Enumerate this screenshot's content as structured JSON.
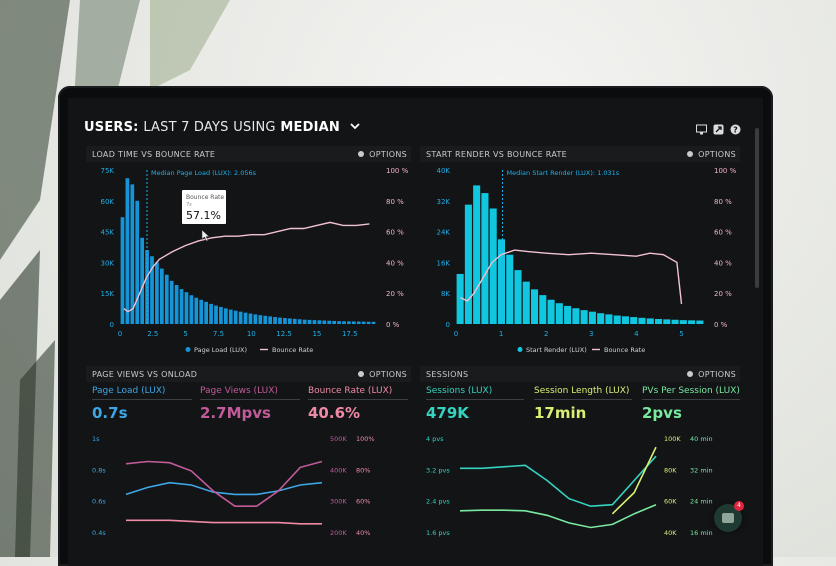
{
  "header": {
    "title_prefix": "USERS:",
    "title_range": "LAST 7 DAYS",
    "title_using": "USING",
    "title_metric": "MEDIAN"
  },
  "options_label": "OPTIONS",
  "panel1": {
    "title": "LOAD TIME VS BOUNCE RATE",
    "median_label": "Median Page Load (LUX): 2.056s",
    "tooltip": {
      "label": "Bounce Rate",
      "sub": "7s",
      "value": "57.1%"
    },
    "legend": [
      "Page Load (LUX)",
      "Bounce Rate"
    ]
  },
  "panel2": {
    "title": "START RENDER VS BOUNCE RATE",
    "median_label": "Median Start Render (LUX): 1.031s",
    "legend": [
      "Start Render (LUX)",
      "Bounce Rate"
    ]
  },
  "panel3": {
    "title": "PAGE VIEWS VS ONLOAD",
    "metrics": [
      {
        "label": "Page Load (LUX)",
        "value": "0.7s",
        "color": "#3fa6e6"
      },
      {
        "label": "Page Views (LUX)",
        "value": "2.7Mpvs",
        "color": "#c25b9a"
      },
      {
        "label": "Bounce Rate (LUX)",
        "value": "40.6%",
        "color": "#ef8aa6"
      }
    ],
    "y_left": [
      "1s",
      "0.8s",
      "0.6s",
      "0.4s"
    ],
    "y_right_a": [
      "500K",
      "400K",
      "300K",
      "200K"
    ],
    "y_right_b": [
      "100%",
      "80%",
      "60%",
      "40%"
    ]
  },
  "panel4": {
    "title": "SESSIONS",
    "metrics": [
      {
        "label": "Sessions (LUX)",
        "value": "479K",
        "color": "#35d3c0"
      },
      {
        "label": "Session Length (LUX)",
        "value": "17min",
        "color": "#d9ef74"
      },
      {
        "label": "PVs Per Session (LUX)",
        "value": "2pvs",
        "color": "#7be8a0"
      }
    ],
    "y_left": [
      "4 pvs",
      "3.2 pvs",
      "2.4 pvs",
      "1.6 pvs"
    ],
    "y_right_a": [
      "100K",
      "80K",
      "60K",
      "40K"
    ],
    "y_right_b": [
      "40 min",
      "32 min",
      "24 min",
      "16 min"
    ]
  },
  "chat_badge": "4",
  "colors": {
    "bar": "#1594d6",
    "bar_cyan": "#11c7e0",
    "line_pink": "#f2c1d2",
    "accent_blue": "#3fa6e6"
  },
  "chart_data": [
    {
      "type": "bar",
      "title": "LOAD TIME VS BOUNCE RATE",
      "x_ticks": [
        "0",
        "2.5",
        "5",
        "7.5",
        "10",
        "12.5",
        "15",
        "17.5"
      ],
      "y_left_ticks": [
        "75K",
        "60K",
        "45K",
        "30K",
        "15K",
        "0"
      ],
      "y_right_ticks": [
        "100 %",
        "80 %",
        "60 %",
        "40 %",
        "20 %",
        "0 %"
      ],
      "ylim": [
        0,
        75000
      ],
      "series": [
        {
          "name": "Page Load (LUX)",
          "values": [
            52000,
            71000,
            68000,
            60000,
            42000,
            36000,
            33000,
            30000,
            27000,
            24000,
            21000,
            19000,
            17000,
            15500,
            14000,
            12800,
            11800,
            10800,
            9800,
            9000,
            8300,
            7600,
            7000,
            6500,
            6000,
            5500,
            5100,
            4700,
            4300,
            4000,
            3700,
            3400,
            3100,
            2900,
            2700,
            2500,
            2300,
            2100,
            2000,
            1900,
            1800,
            1700,
            1600,
            1500,
            1400,
            1350,
            1300,
            1250,
            1200,
            1150,
            1100,
            1050
          ]
        },
        {
          "name": "Bounce Rate",
          "x": [
            0.3,
            0.6,
            1,
            1.5,
            2,
            2.5,
            3,
            4,
            5,
            6,
            7,
            8,
            9,
            10,
            11,
            12,
            13,
            14,
            15,
            16,
            17,
            18,
            19
          ],
          "values": [
            10,
            8,
            10,
            20,
            30,
            37,
            42,
            47,
            51,
            54,
            56,
            57,
            57,
            58,
            58,
            60,
            62,
            62,
            64,
            66,
            64,
            64,
            65
          ]
        }
      ],
      "median": 2.056,
      "legend": "bottom"
    },
    {
      "type": "bar",
      "title": "START RENDER VS BOUNCE RATE",
      "x_ticks": [
        "0",
        "1",
        "2",
        "3",
        "4",
        "5"
      ],
      "y_left_ticks": [
        "40K",
        "32K",
        "24K",
        "16K",
        "8K",
        "0"
      ],
      "y_right_ticks": [
        "100 %",
        "80 %",
        "60 %",
        "40 %",
        "20 %",
        "0 %"
      ],
      "ylim": [
        0,
        40000
      ],
      "series": [
        {
          "name": "Start Render (LUX)",
          "values": [
            13000,
            31000,
            36000,
            34000,
            30000,
            22000,
            18000,
            14000,
            11000,
            9000,
            7500,
            6300,
            5400,
            4700,
            4100,
            3600,
            3200,
            2800,
            2500,
            2200,
            2000,
            1800,
            1600,
            1450,
            1300,
            1200,
            1100,
            1000,
            950,
            900
          ]
        },
        {
          "name": "Bounce Rate",
          "x": [
            0.1,
            0.25,
            0.4,
            0.6,
            0.8,
            1,
            1.3,
            1.6,
            2,
            2.5,
            3,
            3.5,
            4,
            4.3,
            4.6,
            4.9,
            5
          ],
          "values": [
            17,
            15,
            20,
            30,
            40,
            45,
            48,
            47,
            46,
            45,
            46,
            45,
            44,
            46,
            45,
            40,
            13
          ]
        }
      ],
      "median": 1.031,
      "legend": "bottom"
    },
    {
      "type": "line",
      "title": "PAGE VIEWS VS ONLOAD",
      "series": [
        {
          "name": "Page Load (LUX)",
          "values": [
            0.52,
            0.58,
            0.62,
            0.6,
            0.54,
            0.52,
            0.52,
            0.55,
            0.6,
            0.62
          ]
        },
        {
          "name": "Page Views (LUX)",
          "values": [
            0.78,
            0.8,
            0.79,
            0.72,
            0.55,
            0.42,
            0.42,
            0.55,
            0.75,
            0.8
          ]
        },
        {
          "name": "Bounce Rate (LUX)",
          "values": [
            0.3,
            0.3,
            0.3,
            0.29,
            0.28,
            0.28,
            0.28,
            0.28,
            0.27,
            0.27
          ]
        }
      ]
    },
    {
      "type": "line",
      "title": "SESSIONS",
      "series": [
        {
          "name": "Sessions (LUX)",
          "values": [
            3.0,
            3.0,
            3.05,
            3.1,
            2.6,
            2.0,
            1.75,
            1.8,
            2.6,
            3.4
          ]
        },
        {
          "name": "Session Length (LUX)",
          "values": [
            null,
            null,
            null,
            null,
            null,
            null,
            null,
            1.5,
            2.2,
            3.7
          ]
        },
        {
          "name": "PVs Per Session (LUX)",
          "values": [
            1.6,
            1.62,
            1.62,
            1.6,
            1.45,
            1.2,
            1.05,
            1.15,
            1.5,
            1.8
          ]
        }
      ]
    }
  ]
}
